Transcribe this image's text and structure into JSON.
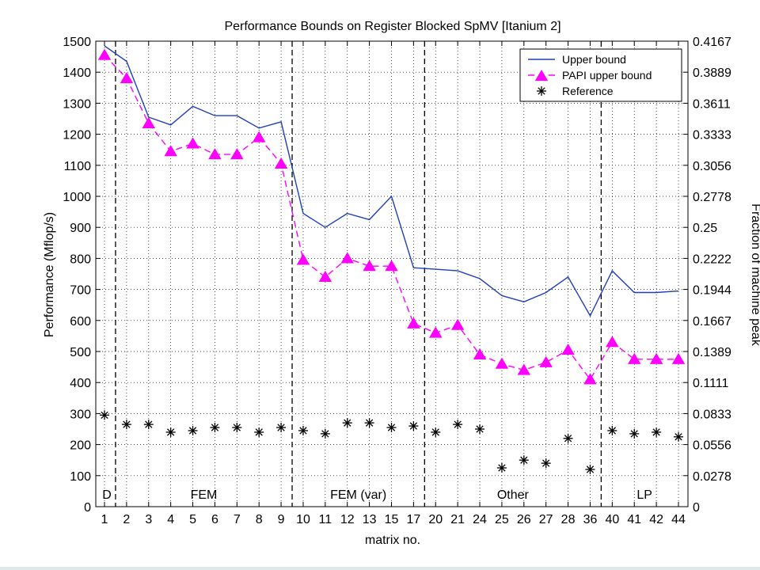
{
  "chart_data": {
    "type": "line",
    "title": "Performance Bounds on Register Blocked SpMV [Itanium 2]",
    "xlabel": "matrix no.",
    "ylabel": "Performance (Mflop/s)",
    "y2label": "Fraction of machine peak",
    "ylim": [
      0,
      1500
    ],
    "yticks": [
      0,
      100,
      200,
      300,
      400,
      500,
      600,
      700,
      800,
      900,
      1000,
      1100,
      1200,
      1300,
      1400,
      1500
    ],
    "y2ticks": [
      "0",
      "0.0278",
      "0.0556",
      "0.0833",
      "0.1111",
      "0.1389",
      "0.1667",
      "0.1944",
      "0.2222",
      "0.25",
      "0.2778",
      "0.3056",
      "0.3333",
      "0.3611",
      "0.3889",
      "0.4167"
    ],
    "categories": [
      "1",
      "2",
      "3",
      "4",
      "5",
      "6",
      "7",
      "8",
      "9",
      "10",
      "11",
      "12",
      "13",
      "15",
      "17",
      "20",
      "21",
      "24",
      "25",
      "26",
      "27",
      "28",
      "36",
      "40",
      "41",
      "42",
      "44"
    ],
    "grid": true,
    "legend_position": "top-right",
    "series": [
      {
        "name": "Upper bound",
        "style": "solid",
        "marker": "none",
        "color": "#1f3fbf",
        "values": [
          1485,
          1435,
          1255,
          1230,
          1290,
          1260,
          1260,
          1220,
          1240,
          945,
          900,
          945,
          925,
          1000,
          770,
          765,
          760,
          735,
          680,
          660,
          690,
          740,
          615,
          760,
          690,
          690,
          695
        ]
      },
      {
        "name": "PAPI upper bound",
        "style": "dashed",
        "marker": "triangle",
        "color": "#ff00ff",
        "values": [
          1455,
          1380,
          1235,
          1145,
          1170,
          1135,
          1135,
          1190,
          1105,
          795,
          740,
          800,
          775,
          775,
          590,
          560,
          585,
          490,
          460,
          440,
          465,
          505,
          410,
          530,
          475,
          475,
          475
        ]
      },
      {
        "name": "Reference",
        "style": "none",
        "marker": "asterisk",
        "color": "#000000",
        "values": [
          295,
          265,
          265,
          240,
          245,
          255,
          255,
          240,
          255,
          245,
          235,
          270,
          270,
          255,
          260,
          240,
          265,
          250,
          125,
          150,
          140,
          220,
          120,
          245,
          235,
          240,
          225
        ]
      }
    ],
    "regions": [
      {
        "label": "D",
        "after_index": 0
      },
      {
        "label": "FEM",
        "after_index": 8
      },
      {
        "label": "FEM (var)",
        "after_index": 14
      },
      {
        "label": "Other",
        "after_index": 22
      },
      {
        "label": "LP",
        "after_index": 26
      }
    ]
  }
}
